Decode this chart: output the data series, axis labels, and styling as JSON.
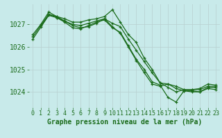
{
  "background_color": "#c8eaea",
  "grid_color": "#d8e8e8",
  "line_color": "#1a6b1a",
  "xlabel": "Graphe pression niveau de la mer (hPa)",
  "xlabel_fontsize": 7,
  "tick_fontsize": 6,
  "xlim": [
    -0.5,
    23.5
  ],
  "ylim": [
    1023.3,
    1027.9
  ],
  "yticks": [
    1024,
    1025,
    1026,
    1027
  ],
  "lines": [
    {
      "x": [
        0,
        1,
        2,
        3,
        4,
        5,
        6,
        7,
        8,
        9,
        10,
        11,
        12,
        13,
        14,
        15,
        16,
        17,
        18,
        19,
        20,
        21,
        22,
        23
      ],
      "y": [
        1026.55,
        1027.0,
        1027.55,
        1027.35,
        1027.25,
        1027.1,
        1027.1,
        1027.2,
        1027.25,
        1027.35,
        1027.65,
        1027.1,
        1026.55,
        1026.2,
        1025.5,
        1025.0,
        1024.4,
        1024.2,
        1024.0,
        1024.1,
        1024.1,
        1024.15,
        1024.35,
        1024.3
      ]
    },
    {
      "x": [
        0,
        1,
        2,
        3,
        4,
        5,
        6,
        7,
        8,
        9,
        10,
        11,
        12,
        13,
        14,
        15,
        16,
        17,
        18,
        19,
        20,
        21,
        22,
        23
      ],
      "y": [
        1026.45,
        1026.95,
        1027.45,
        1027.3,
        1027.15,
        1027.0,
        1026.95,
        1027.05,
        1027.15,
        1027.25,
        1027.05,
        1026.9,
        1026.35,
        1025.85,
        1025.35,
        1024.85,
        1024.4,
        1024.35,
        1024.25,
        1024.1,
        1024.1,
        1024.1,
        1024.25,
        1024.25
      ]
    },
    {
      "x": [
        0,
        2,
        3,
        4,
        5,
        6,
        7,
        8,
        9,
        10,
        11,
        12,
        13,
        14,
        15,
        16,
        17,
        18,
        19,
        20,
        21,
        22,
        23
      ],
      "y": [
        1026.35,
        1027.4,
        1027.3,
        1027.1,
        1026.85,
        1026.8,
        1026.95,
        1027.1,
        1027.2,
        1026.85,
        1026.65,
        1026.05,
        1025.45,
        1025.0,
        1024.45,
        1024.3,
        1023.75,
        1023.55,
        1024.05,
        1024.05,
        1024.0,
        1024.2,
        1024.2
      ]
    },
    {
      "x": [
        1,
        2,
        3,
        4,
        5,
        6,
        7,
        8,
        9,
        10,
        11,
        12,
        13,
        14,
        15,
        16,
        17,
        18,
        19,
        20,
        21,
        22,
        23
      ],
      "y": [
        1026.9,
        1027.45,
        1027.35,
        1027.15,
        1026.95,
        1026.85,
        1026.9,
        1027.05,
        1027.25,
        1026.9,
        1026.6,
        1026.0,
        1025.4,
        1024.85,
        1024.35,
        1024.25,
        1024.35,
        1024.15,
        1024.05,
        1024.0,
        1024.0,
        1024.15,
        1024.1
      ]
    }
  ]
}
